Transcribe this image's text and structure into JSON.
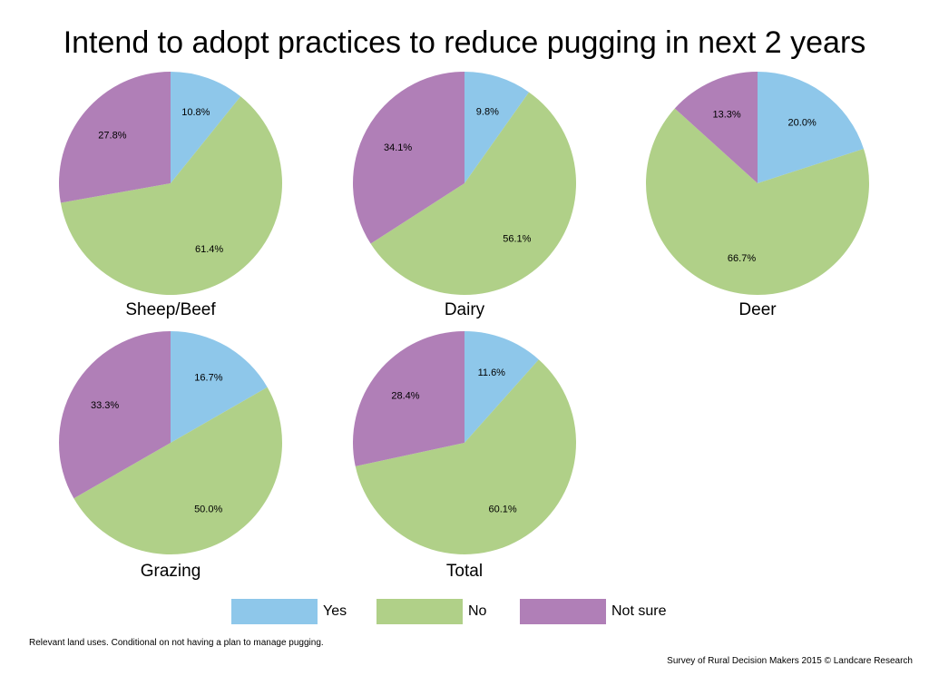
{
  "title": "Intend to adopt practices to reduce pugging in next 2 years",
  "colors": {
    "Yes": "#8ec7ea",
    "No": "#b0d088",
    "Not sure": "#b07fb7"
  },
  "legend": [
    "Yes",
    "No",
    "Not sure"
  ],
  "chart_data": [
    {
      "type": "pie",
      "title": "Sheep/Beef",
      "labels": [
        "Yes",
        "No",
        "Not sure"
      ],
      "values": [
        10.8,
        61.4,
        27.8
      ],
      "value_labels": [
        "10.8%",
        "61.4%",
        "27.8%"
      ]
    },
    {
      "type": "pie",
      "title": "Dairy",
      "labels": [
        "Yes",
        "No",
        "Not sure"
      ],
      "values": [
        9.8,
        56.1,
        34.1
      ],
      "value_labels": [
        "9.8%",
        "56.1%",
        "34.1%"
      ]
    },
    {
      "type": "pie",
      "title": "Deer",
      "labels": [
        "Yes",
        "No",
        "Not sure"
      ],
      "values": [
        20.0,
        66.7,
        13.3
      ],
      "value_labels": [
        "20.0%",
        "66.7%",
        "13.3%"
      ]
    },
    {
      "type": "pie",
      "title": "Grazing",
      "labels": [
        "Yes",
        "No",
        "Not sure"
      ],
      "values": [
        16.7,
        50.0,
        33.3
      ],
      "value_labels": [
        "16.7%",
        "50.0%",
        "33.3%"
      ]
    },
    {
      "type": "pie",
      "title": "Total",
      "labels": [
        "Yes",
        "No",
        "Not sure"
      ],
      "values": [
        11.6,
        60.1,
        28.4
      ],
      "value_labels": [
        "11.6%",
        "60.1%",
        "28.4%"
      ]
    }
  ],
  "note": "Relevant land uses. Conditional on not having a plan to manage pugging.",
  "credit": "Survey of Rural Decision Makers 2015 © Landcare Research"
}
